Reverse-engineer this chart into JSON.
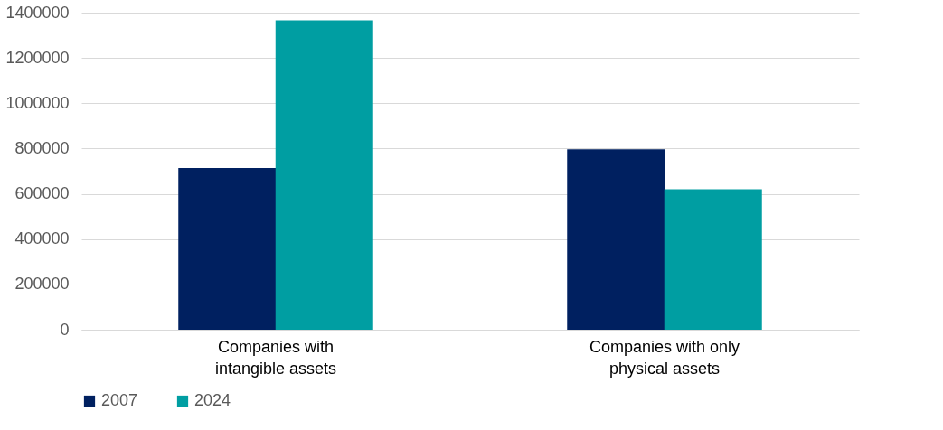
{
  "chart_data": {
    "type": "bar",
    "categories": [
      "Companies with intangible assets",
      "Companies with only physical assets"
    ],
    "series": [
      {
        "name": "2007",
        "color": "#002060",
        "values": [
          714000,
          797000
        ]
      },
      {
        "name": "2024",
        "color": "#009ea2",
        "values": [
          1366000,
          620000
        ]
      }
    ],
    "ylim": [
      0,
      1400000
    ],
    "yticks": [
      0,
      200000,
      400000,
      600000,
      800000,
      1000000,
      1200000,
      1400000
    ],
    "grid": "y",
    "legend": "bottom"
  }
}
